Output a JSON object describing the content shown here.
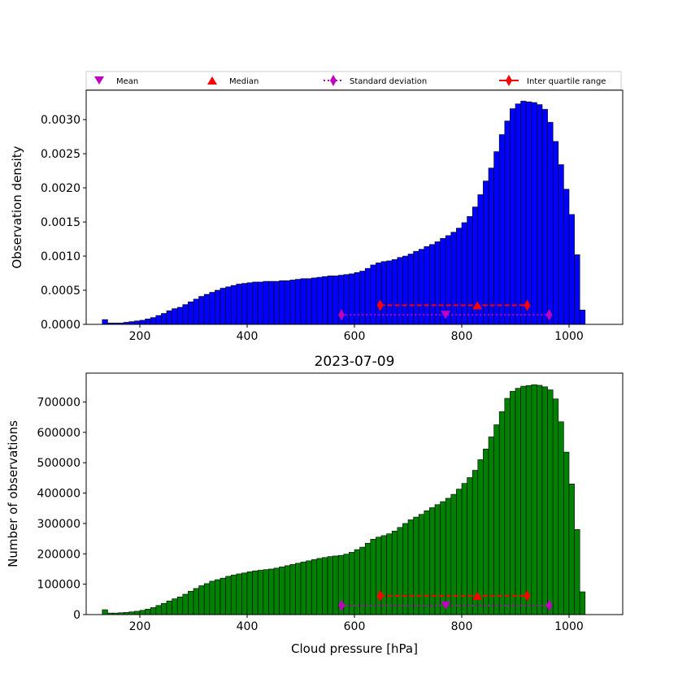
{
  "legend": {
    "mean_label": "Mean",
    "median_label": "Median",
    "std_label": "Standard deviation",
    "iqr_label": "Inter quartile range"
  },
  "colors": {
    "density_bars": "#0000ff",
    "count_bars": "#008000",
    "mean": "#bf00bf",
    "iqr": "#ff0000"
  },
  "chart_data": [
    {
      "type": "bar",
      "title": "",
      "xlabel": "",
      "ylabel": "Observation density",
      "xlim": [
        100,
        1100
      ],
      "ylim": [
        0,
        0.00343
      ],
      "xticks": [
        200,
        400,
        600,
        800,
        1000
      ],
      "yticks": [
        0,
        0.0005,
        0.001,
        0.0015,
        0.002,
        0.0025,
        0.003
      ],
      "ytick_labels": [
        "0.0000",
        "0.0005",
        "0.0010",
        "0.0015",
        "0.0020",
        "0.0025",
        "0.0030"
      ],
      "bin_start": 130,
      "bin_width": 10,
      "values": [
        7e-05,
        2e-05,
        2e-05,
        2e-05,
        3e-05,
        4e-05,
        5e-05,
        6e-05,
        8e-05,
        0.0001,
        0.00013,
        0.00016,
        0.0002,
        0.00023,
        0.00025,
        0.00029,
        0.00033,
        0.00037,
        0.00041,
        0.00044,
        0.00047,
        0.0005,
        0.00053,
        0.00055,
        0.00057,
        0.00059,
        0.0006,
        0.00061,
        0.00062,
        0.00062,
        0.00063,
        0.00063,
        0.00063,
        0.00064,
        0.00064,
        0.00065,
        0.00066,
        0.00067,
        0.00067,
        0.00068,
        0.00069,
        0.0007,
        0.00071,
        0.00071,
        0.00072,
        0.00073,
        0.00074,
        0.00076,
        0.00078,
        0.00082,
        0.00087,
        0.0009,
        0.00092,
        0.00093,
        0.00095,
        0.00098,
        0.001,
        0.00103,
        0.00107,
        0.0011,
        0.00114,
        0.00117,
        0.00121,
        0.00126,
        0.0013,
        0.00135,
        0.00141,
        0.00149,
        0.00158,
        0.00172,
        0.0019,
        0.0021,
        0.00229,
        0.00253,
        0.00278,
        0.00298,
        0.00316,
        0.00323,
        0.00327,
        0.00326,
        0.00325,
        0.00322,
        0.00315,
        0.00296,
        0.00268,
        0.00234,
        0.00198,
        0.00161,
        0.00102,
        0.00021
      ],
      "stats": {
        "mean": {
          "x": 770,
          "y": 0.00014
        },
        "median": {
          "x": 829,
          "y": 0.00028
        },
        "std_range": [
          576,
          963
        ],
        "std_y": 0.00014,
        "iqr_range": [
          648,
          922
        ],
        "iqr_y": 0.00028
      }
    },
    {
      "type": "bar",
      "title": "2023-07-09",
      "xlabel": "Cloud pressure [hPa]",
      "ylabel": "Number of observations",
      "xlim": [
        100,
        1100
      ],
      "ylim": [
        0,
        795000
      ],
      "xticks": [
        200,
        400,
        600,
        800,
        1000
      ],
      "yticks": [
        0,
        100000,
        200000,
        300000,
        400000,
        500000,
        600000,
        700000
      ],
      "ytick_labels": [
        "0",
        "100000",
        "200000",
        "300000",
        "400000",
        "500000",
        "600000",
        "700000"
      ],
      "bin_start": 130,
      "bin_width": 10,
      "values": [
        16000,
        5000,
        5000,
        6000,
        7000,
        9000,
        11000,
        14000,
        18000,
        23000,
        30000,
        37000,
        45000,
        52000,
        58000,
        67000,
        77000,
        86000,
        95000,
        102000,
        110000,
        115000,
        120000,
        126000,
        130000,
        134000,
        137000,
        141000,
        144000,
        146000,
        148000,
        150000,
        153000,
        157000,
        161000,
        165000,
        169000,
        173000,
        177000,
        181000,
        185000,
        188000,
        191000,
        193000,
        195000,
        199000,
        205000,
        214000,
        222000,
        235000,
        248000,
        255000,
        260000,
        266000,
        275000,
        287000,
        300000,
        312000,
        321000,
        330000,
        342000,
        352000,
        362000,
        372000,
        383000,
        396000,
        413000,
        432000,
        451000,
        475000,
        510000,
        545000,
        585000,
        625000,
        668000,
        712000,
        735000,
        745000,
        752000,
        754000,
        757000,
        755000,
        750000,
        740000,
        710000,
        635000,
        535000,
        430000,
        280000,
        75000
      ],
      "stats": {
        "mean": {
          "x": 770,
          "y": 30000
        },
        "median": {
          "x": 829,
          "y": 62000
        },
        "std_range": [
          576,
          963
        ],
        "std_y": 30000,
        "iqr_range": [
          648,
          922
        ],
        "iqr_y": 62000
      }
    }
  ]
}
